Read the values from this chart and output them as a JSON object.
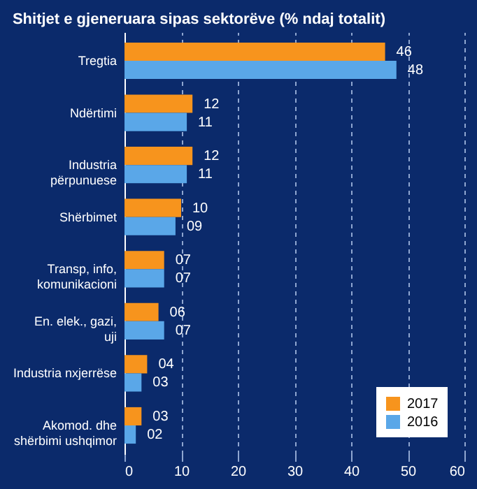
{
  "chart_data": {
    "type": "bar",
    "orientation": "horizontal",
    "title": "Shitjet e gjeneruara sipas sektorëve (% ndaj totalit)",
    "categories": [
      "Tregtia",
      "Ndërtimi",
      "Industria përpunuese",
      "Shërbimet",
      "Transp, info, komunikacioni",
      "En. elek., gazi, uji",
      "Industria nxjerrëse",
      "Akomod. dhe shërbimi ushqimor"
    ],
    "series": [
      {
        "name": "2017",
        "color": "#f7941d",
        "values": [
          46,
          12,
          12,
          10,
          7,
          6,
          4,
          3
        ],
        "value_labels": [
          "46",
          "12",
          "12",
          "10",
          "07",
          "06",
          "04",
          "03"
        ]
      },
      {
        "name": "2016",
        "color": "#5aa7e8",
        "values": [
          48,
          11,
          11,
          9,
          7,
          7,
          3,
          2
        ],
        "value_labels": [
          "48",
          "11",
          "11",
          "09",
          "07",
          "07",
          "03",
          "02"
        ]
      }
    ],
    "xlim": [
      0,
      60
    ],
    "xticks": [
      0,
      10,
      20,
      30,
      40,
      50,
      60
    ],
    "grid": "x",
    "legend": "bottom right"
  }
}
